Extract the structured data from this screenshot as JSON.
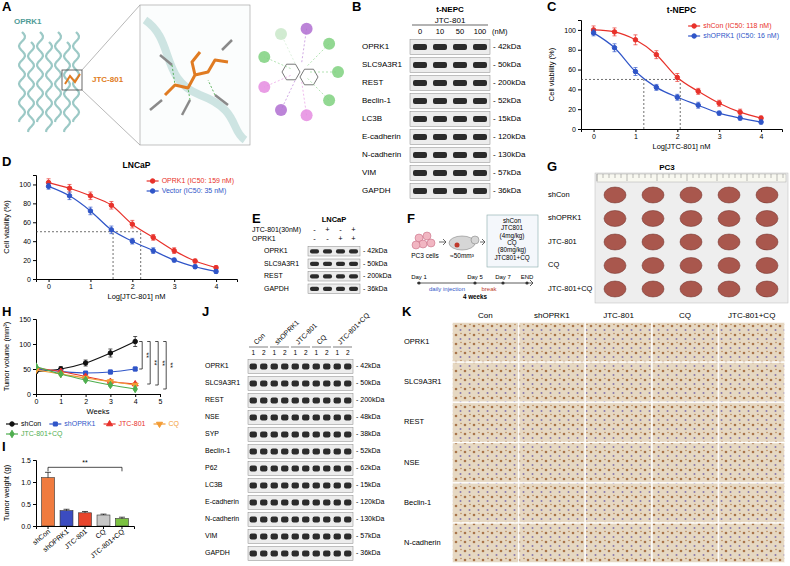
{
  "chart_data": [
    {
      "panel": "C",
      "type": "line",
      "title": "t-NEPC",
      "x_label": "Log[JTC-801] nM",
      "y_label": "Cell viability (%)",
      "x": [
        0,
        0.5,
        1,
        1.5,
        2,
        2.5,
        3,
        3.5,
        4
      ],
      "xlim": [
        -0.3,
        4.5
      ],
      "xticks": [
        0,
        1,
        2,
        3,
        4
      ],
      "ylim": [
        0,
        110
      ],
      "yticks": [
        0,
        20,
        40,
        60,
        80,
        100
      ],
      "legend": "upper right",
      "reference_lines": {
        "x": [
          1.2,
          2.07
        ],
        "y": 50
      },
      "series": [
        {
          "name": "shCon (IC50: 118 nM)",
          "color": "#e8312a",
          "marker": "circle",
          "values": [
            100,
            98,
            90,
            75,
            52,
            38,
            26,
            17,
            11
          ],
          "errors": [
            4,
            4,
            5,
            4,
            4,
            3,
            3,
            3,
            2
          ]
        },
        {
          "name": "shOPRK1 (IC50: 16 nM)",
          "color": "#2f55c8",
          "marker": "circle",
          "values": [
            97,
            82,
            58,
            42,
            32,
            24,
            16,
            11,
            7
          ],
          "errors": [
            3,
            4,
            4,
            3,
            3,
            3,
            2,
            2,
            2
          ]
        }
      ]
    },
    {
      "panel": "D",
      "type": "line",
      "title": "LNCaP",
      "x_label": "Log[JTC-801] nM",
      "y_label": "Cell viability (%)",
      "x": [
        0,
        0.5,
        1,
        1.5,
        2,
        2.5,
        3,
        3.5,
        4
      ],
      "xlim": [
        -0.3,
        4.5
      ],
      "xticks": [
        0,
        1,
        2,
        3,
        4
      ],
      "ylim": [
        0,
        110
      ],
      "yticks": [
        0,
        20,
        40,
        60,
        80,
        100
      ],
      "legend": "upper right",
      "reference_lines": {
        "x": [
          1.54,
          2.2
        ],
        "y": 50
      },
      "series": [
        {
          "name": "OPRK1 (IC50: 159 nM)",
          "color": "#e8312a",
          "marker": "circle",
          "values": [
            102,
            96,
            88,
            78,
            58,
            44,
            30,
            19,
            12
          ],
          "errors": [
            4,
            4,
            4,
            4,
            4,
            3,
            3,
            2,
            2
          ]
        },
        {
          "name": "Vector (IC50: 35 nM)",
          "color": "#2f55c8",
          "marker": "circle",
          "values": [
            98,
            88,
            72,
            52,
            40,
            30,
            20,
            13,
            8
          ],
          "errors": [
            3,
            4,
            4,
            4,
            3,
            3,
            2,
            2,
            2
          ]
        }
      ]
    },
    {
      "panel": "H",
      "type": "line",
      "x_label": "Weeks",
      "y_label": "Tumor volume (mm³)",
      "x": [
        0,
        1,
        2,
        3,
        4
      ],
      "xlim": [
        0,
        5
      ],
      "xticks": [
        0,
        1,
        2,
        3,
        4,
        5
      ],
      "ylim": [
        0,
        150
      ],
      "yticks": [
        0,
        50,
        100,
        150
      ],
      "legend": "bottom",
      "series": [
        {
          "name": "shCon",
          "color": "#111111",
          "marker": "circle",
          "values": [
            45,
            50,
            62,
            82,
            105
          ],
          "errors": [
            3,
            5,
            6,
            8,
            10
          ]
        },
        {
          "name": "shOPRK1",
          "color": "#2f55c8",
          "marker": "square",
          "values": [
            50,
            45,
            42,
            44,
            50
          ],
          "errors": [
            3,
            3,
            3,
            4,
            4
          ]
        },
        {
          "name": "JTC-801",
          "color": "#e8312a",
          "marker": "triangle",
          "values": [
            52,
            45,
            35,
            25,
            20
          ],
          "errors": [
            3,
            3,
            3,
            3,
            3
          ]
        },
        {
          "name": "CQ",
          "color": "#f39c34",
          "marker": "triangle-down",
          "values": [
            48,
            40,
            32,
            25,
            18
          ],
          "errors": [
            3,
            3,
            3,
            3,
            3
          ]
        },
        {
          "name": "JTC-801+CQ",
          "color": "#4fae4f",
          "marker": "diamond",
          "values": [
            55,
            40,
            28,
            18,
            10
          ],
          "errors": [
            3,
            3,
            3,
            3,
            2
          ]
        }
      ],
      "annotations": [
        {
          "text": "**",
          "from": "shCon",
          "to": "shOPRK1"
        },
        {
          "text": "**",
          "from": "shCon",
          "to": "JTC-801"
        },
        {
          "text": "**",
          "from": "shCon",
          "to": "CQ"
        },
        {
          "text": "**",
          "from": "shCon",
          "to": "JTC-801+CQ"
        }
      ]
    },
    {
      "panel": "I",
      "type": "bar",
      "y_label": "Tumor weight (g)",
      "categories": [
        "shCon",
        "shOPRK1",
        "JTC-801",
        "CQ",
        "JTC-801+CQ"
      ],
      "values": [
        1.1,
        0.35,
        0.3,
        0.25,
        0.17
      ],
      "errors": [
        0.12,
        0.03,
        0.03,
        0.02,
        0.03
      ],
      "colors": [
        "#f07b3f",
        "#3b4cc0",
        "#e8452c",
        "#c8c8c8",
        "#7cc242"
      ],
      "ylim": [
        0,
        1.5
      ],
      "yticks": [
        {
          "value": 0,
          "label": "0.0"
        },
        0.5,
        {
          "value": 1,
          "label": "1.0"
        },
        1.5
      ],
      "annotations": [
        {
          "text": "**",
          "from": "shCon",
          "to": "JTC-801+CQ"
        }
      ]
    }
  ],
  "panels": {
    "A": {
      "letter": "A",
      "protein": "OPRK1",
      "ligand": "JTC-801"
    },
    "B": {
      "letter": "B",
      "cell_line": "t-NEPC",
      "treatment": "JTC-801",
      "doses": [
        "0",
        "10",
        "50",
        "100"
      ],
      "unit": "(nM)",
      "rows": [
        {
          "name": "OPRK1",
          "size": "- 42kDa"
        },
        {
          "name": "SLC9A3R1",
          "size": "- 50kDa"
        },
        {
          "name": "REST",
          "size": "- 200kDa"
        },
        {
          "name": "Beclin-1",
          "size": "- 52kDa"
        },
        {
          "name": "LC3B",
          "size": "- 15kDa"
        },
        {
          "name": "E-cadherin",
          "size": "- 120kDa"
        },
        {
          "name": "N-cadherin",
          "size": "- 130kDa"
        },
        {
          "name": "VIM",
          "size": "- 57kDa"
        },
        {
          "name": "GAPDH",
          "size": "- 36kDa"
        }
      ]
    },
    "E": {
      "letter": "E",
      "cell_line": "LNCaP",
      "conditions": [
        {
          "name": "JTC-801(30nM)",
          "signs": [
            "-",
            "+",
            "-",
            "+"
          ]
        },
        {
          "name": "OPRK1",
          "signs": [
            "-",
            "-",
            "+",
            "+"
          ]
        }
      ],
      "rows": [
        {
          "name": "OPRK1",
          "size": "- 42kDa"
        },
        {
          "name": "SLC9A3R1",
          "size": "- 50kDa"
        },
        {
          "name": "REST",
          "size": "- 200kDa"
        },
        {
          "name": "GAPDH",
          "size": "- 36kDa"
        }
      ]
    },
    "F": {
      "letter": "F",
      "cells": "PC3 cells",
      "volume": "≈50mm³",
      "groups": [
        [
          "shCon"
        ],
        [
          "JTC801",
          "(4mg/kg)"
        ],
        [
          "CQ",
          "(80mg/kg)"
        ],
        [
          "JTC801+CQ"
        ]
      ],
      "timeline": {
        "start": "Day 1",
        "phase1": "daily injection",
        "mid": "Day 5",
        "phase2": "break",
        "restart": "Day 7",
        "end": "END",
        "duration": "4 weeks"
      }
    },
    "G": {
      "letter": "G",
      "title": "PC3",
      "groups": [
        "shCon",
        "shOPRK1",
        "JTC-801",
        "CQ",
        "JTC-801+CQ"
      ]
    },
    "J": {
      "letter": "J",
      "groups": [
        "Con",
        "shOPRK1",
        "JTC-801",
        "CQ",
        "JTC-801+CQ"
      ],
      "lanes": [
        "1",
        "2"
      ],
      "rows": [
        {
          "name": "OPRK1",
          "size": "- 42kDa"
        },
        {
          "name": "SLC9A3R1",
          "size": "- 50kDa"
        },
        {
          "name": "REST",
          "size": "- 200kDa"
        },
        {
          "name": "NSE",
          "size": "- 48kDa"
        },
        {
          "name": "SYP",
          "size": "- 38kDa"
        },
        {
          "name": "Beclin-1",
          "size": "- 52kDa"
        },
        {
          "name": "P62",
          "size": "- 62kDa"
        },
        {
          "name": "LC3B",
          "size": "- 15kDa"
        },
        {
          "name": "E-cadherin",
          "size": "- 120kDa"
        },
        {
          "name": "N-cadherin",
          "size": "- 130kDa"
        },
        {
          "name": "VIM",
          "size": "- 57kDa"
        },
        {
          "name": "GAPDH",
          "size": "- 36kDa"
        }
      ]
    },
    "K": {
      "letter": "K",
      "columns": [
        "Con",
        "shOPRK1",
        "JTC-801",
        "CQ",
        "JTC-801+CQ"
      ],
      "rows": [
        "OPRK1",
        "SLC9A3R1",
        "REST",
        "NSE",
        "Beclin-1",
        "N-cadherin"
      ]
    }
  }
}
